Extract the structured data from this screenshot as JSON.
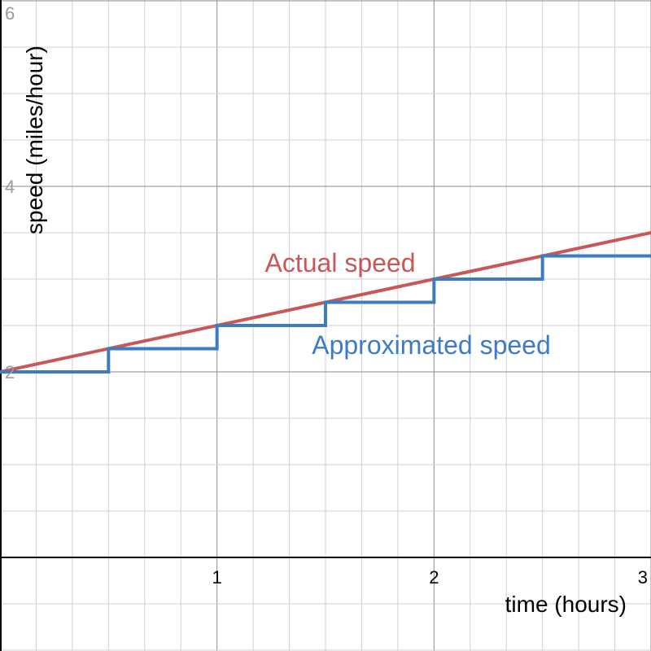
{
  "chart_data": {
    "type": "line",
    "title": "",
    "xlabel": "time (hours)",
    "ylabel": "speed (miles/hour)",
    "xlim": [
      0,
      3
    ],
    "ylim": [
      -1,
      6
    ],
    "x_ticks": [
      1,
      2,
      3
    ],
    "y_ticks": [
      2,
      4,
      6
    ],
    "grid": true,
    "series": [
      {
        "name": "Actual speed",
        "color": "#c95757",
        "style": "line",
        "x": [
          0,
          3
        ],
        "y": [
          2,
          3.5
        ]
      },
      {
        "name": "Approximated speed",
        "color": "#3d7cc0",
        "style": "step",
        "x": [
          0,
          0.5,
          1,
          1.5,
          2,
          2.5,
          3
        ],
        "y": [
          2,
          2.25,
          2.5,
          2.75,
          3,
          3.25,
          3.25
        ]
      }
    ]
  }
}
